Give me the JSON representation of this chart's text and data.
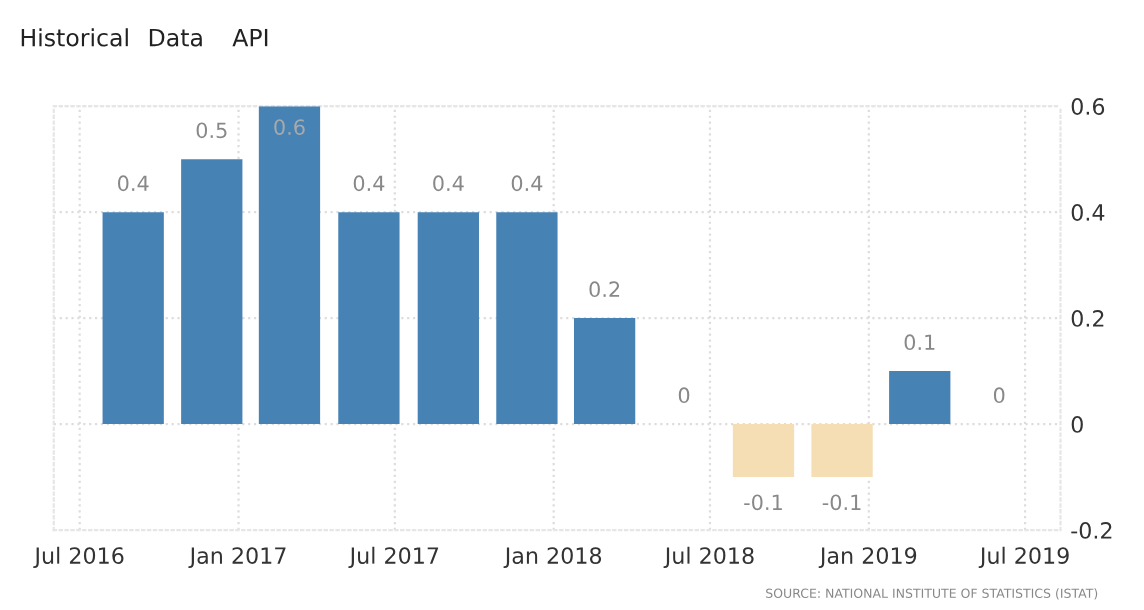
{
  "chart_data": {
    "type": "bar",
    "x": [
      "2016-09-01",
      "2016-12-01",
      "2017-03-01",
      "2017-06-01",
      "2017-09-01",
      "2017-12-01",
      "2018-03-01",
      "2018-06-01",
      "2018-09-01",
      "2018-12-01",
      "2019-03-01",
      "2019-06-01"
    ],
    "values": [
      0.4,
      0.5,
      0.6,
      0.4,
      0.4,
      0.4,
      0.2,
      0,
      -0.1,
      -0.1,
      0.1,
      0
    ],
    "colors": [
      "#4682b4",
      "#4682b4",
      "#4682b4",
      "#4682b4",
      "#4682b4",
      "#4682b4",
      "#4682b4",
      "#4682b4",
      "#f5deb3",
      "#f5deb3",
      "#4682b4",
      "#4682b4"
    ],
    "data_labels": true,
    "xlim": [
      "2016-06-01",
      "2019-08-11"
    ],
    "xticks": [
      {
        "value": "2016-07-01",
        "label": "Jul 2016"
      },
      {
        "value": "2017-01-01",
        "label": "Jan 2017"
      },
      {
        "value": "2017-07-01",
        "label": "Jul 2017"
      },
      {
        "value": "2018-01-01",
        "label": "Jan 2018"
      },
      {
        "value": "2018-07-01",
        "label": "Jul 2018"
      },
      {
        "value": "2019-01-01",
        "label": "Jan 2019"
      },
      {
        "value": "2019-07-01",
        "label": "Jul 2019"
      }
    ],
    "ylim": [
      -0.2,
      0.6
    ],
    "yticks": [
      -0.2,
      0,
      0.2,
      0.4,
      0.6
    ],
    "grid": true,
    "annotations": [
      "Historical",
      "Data",
      "API",
      "SOURCE: NATIONAL INSTITUTE OF STATISTICS (ISTAT)"
    ]
  }
}
